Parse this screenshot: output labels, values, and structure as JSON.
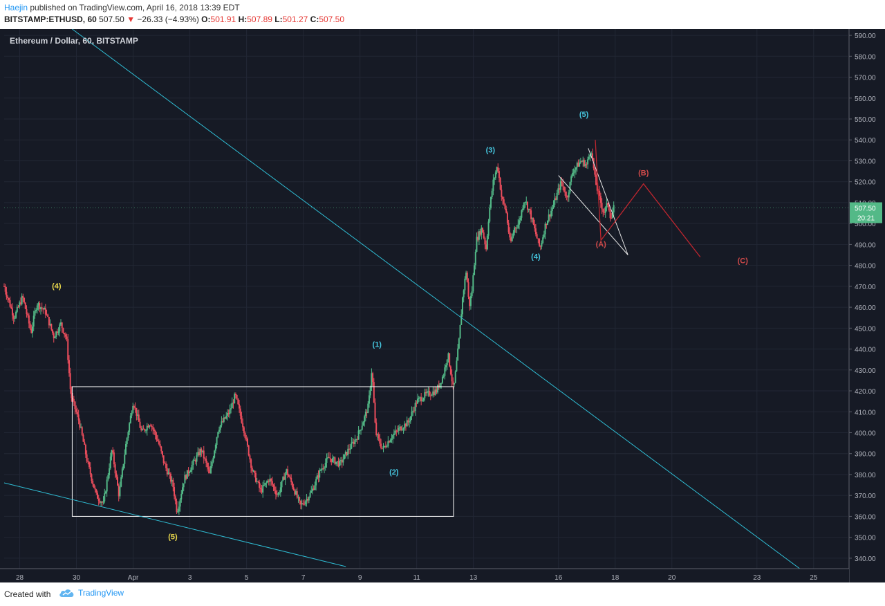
{
  "header": {
    "author": "Haejin",
    "published": "published on TradingView.com, April 16, 2018 13:39 EDT",
    "symbol": "BITSTAMP:ETHUSD, 60",
    "last": "507.50",
    "change": "−26.33 (−4.93%)",
    "o_label": "O:",
    "o_val": "501.91",
    "h_label": "H:",
    "h_val": "507.89",
    "l_label": "L:",
    "l_val": "501.27",
    "c_label": "C:",
    "c_val": "507.50"
  },
  "chart_title": "Ethereum / Dollar, 60, BITSTAMP",
  "footer": {
    "created": "Created with",
    "brand": "TradingView"
  },
  "price_badge": {
    "value": "507.50",
    "timer": "20:21"
  },
  "colors": {
    "background": "#161a25",
    "up": "#53b987",
    "down": "#eb4d5c",
    "trendline": "#2fbcd3",
    "box": "#ffffff",
    "projection": "#c0262f",
    "label_yellow": "#e9d84b",
    "label_cyan": "#46c7e0",
    "label_red": "#d04a4a",
    "axis_text": "#b2b5be"
  },
  "chart_data": {
    "type": "candlestick",
    "timeframe": "60",
    "ylim": [
      335,
      593
    ],
    "y_ticks": [
      340,
      350,
      360,
      370,
      380,
      390,
      400,
      410,
      420,
      430,
      440,
      450,
      460,
      470,
      480,
      490,
      500,
      510,
      520,
      530,
      540,
      550,
      560,
      570,
      580,
      590
    ],
    "x_range_days": [
      -3.55,
      26.2
    ],
    "x_ticks": [
      {
        "label": "28",
        "day": -3
      },
      {
        "label": "30",
        "day": -1
      },
      {
        "label": "Apr",
        "day": 1
      },
      {
        "label": "3",
        "day": 3
      },
      {
        "label": "5",
        "day": 5
      },
      {
        "label": "7",
        "day": 7
      },
      {
        "label": "9",
        "day": 9
      },
      {
        "label": "11",
        "day": 11
      },
      {
        "label": "13",
        "day": 13
      },
      {
        "label": "16",
        "day": 16
      },
      {
        "label": "18",
        "day": 18
      },
      {
        "label": "20",
        "day": 20
      },
      {
        "label": "23",
        "day": 23
      },
      {
        "label": "25",
        "day": 25
      }
    ],
    "price_path": [
      [
        -3.55,
        470
      ],
      [
        -3.2,
        455
      ],
      [
        -2.9,
        465
      ],
      [
        -2.6,
        448
      ],
      [
        -2.4,
        462
      ],
      [
        -2.1,
        458
      ],
      [
        -1.8,
        446
      ],
      [
        -1.55,
        452
      ],
      [
        -1.35,
        445
      ],
      [
        -1.2,
        418
      ],
      [
        -0.9,
        405
      ],
      [
        -0.6,
        385
      ],
      [
        -0.3,
        370
      ],
      [
        -0.05,
        366
      ],
      [
        0.25,
        392
      ],
      [
        0.5,
        370
      ],
      [
        0.75,
        395
      ],
      [
        1.0,
        415
      ],
      [
        1.3,
        400
      ],
      [
        1.6,
        405
      ],
      [
        1.9,
        395
      ],
      [
        2.1,
        385
      ],
      [
        2.4,
        375
      ],
      [
        2.55,
        362
      ],
      [
        2.8,
        378
      ],
      [
        3.1,
        385
      ],
      [
        3.4,
        392
      ],
      [
        3.7,
        380
      ],
      [
        4.0,
        402
      ],
      [
        4.4,
        410
      ],
      [
        4.6,
        418
      ],
      [
        4.9,
        402
      ],
      [
        5.2,
        382
      ],
      [
        5.5,
        372
      ],
      [
        5.8,
        378
      ],
      [
        6.1,
        370
      ],
      [
        6.4,
        382
      ],
      [
        6.7,
        372
      ],
      [
        6.9,
        365
      ],
      [
        7.1,
        368
      ],
      [
        7.3,
        372
      ],
      [
        7.6,
        382
      ],
      [
        7.9,
        388
      ],
      [
        8.3,
        385
      ],
      [
        8.6,
        392
      ],
      [
        8.9,
        398
      ],
      [
        9.1,
        405
      ],
      [
        9.3,
        413
      ],
      [
        9.42,
        431
      ],
      [
        9.55,
        400
      ],
      [
        9.8,
        392
      ],
      [
        10.1,
        398
      ],
      [
        10.4,
        402
      ],
      [
        10.7,
        405
      ],
      [
        11.0,
        415
      ],
      [
        11.3,
        418
      ],
      [
        11.7,
        420
      ],
      [
        11.95,
        428
      ],
      [
        12.1,
        438
      ],
      [
        12.3,
        420
      ],
      [
        12.5,
        445
      ],
      [
        12.62,
        465
      ],
      [
        12.75,
        478
      ],
      [
        12.85,
        460
      ],
      [
        12.95,
        468
      ],
      [
        13.1,
        492
      ],
      [
        13.3,
        498
      ],
      [
        13.45,
        488
      ],
      [
        13.55,
        505
      ],
      [
        13.7,
        520
      ],
      [
        13.85,
        528
      ],
      [
        14.0,
        512
      ],
      [
        14.15,
        506
      ],
      [
        14.3,
        490
      ],
      [
        14.45,
        498
      ],
      [
        14.6,
        500
      ],
      [
        14.8,
        512
      ],
      [
        15.0,
        505
      ],
      [
        15.2,
        495
      ],
      [
        15.35,
        488
      ],
      [
        15.55,
        500
      ],
      [
        15.8,
        508
      ],
      [
        16.1,
        520
      ],
      [
        16.3,
        512
      ],
      [
        16.5,
        525
      ],
      [
        16.8,
        530
      ],
      [
        17.0,
        528
      ],
      [
        17.15,
        536
      ],
      [
        17.3,
        520
      ],
      [
        17.45,
        512
      ],
      [
        17.6,
        505
      ],
      [
        17.75,
        510
      ],
      [
        17.85,
        502
      ],
      [
        17.95,
        507.5
      ]
    ],
    "wave_labels": [
      {
        "text": "(4)",
        "day": -1.7,
        "price": 469,
        "color": "yellow"
      },
      {
        "text": "(5)",
        "day": 2.4,
        "price": 349,
        "color": "yellow"
      },
      {
        "text": "(1)",
        "day": 9.6,
        "price": 441,
        "color": "cyan"
      },
      {
        "text": "(2)",
        "day": 10.2,
        "price": 380,
        "color": "cyan"
      },
      {
        "text": "(3)",
        "day": 13.6,
        "price": 534,
        "color": "cyan"
      },
      {
        "text": "(4)",
        "day": 15.2,
        "price": 483,
        "color": "cyan"
      },
      {
        "text": "(5)",
        "day": 16.9,
        "price": 551,
        "color": "cyan"
      },
      {
        "text": "(A)",
        "day": 17.5,
        "price": 489,
        "color": "red"
      },
      {
        "text": "(B)",
        "day": 19.0,
        "price": 523,
        "color": "red"
      },
      {
        "text": "(C)",
        "day": 22.5,
        "price": 481,
        "color": "red"
      }
    ],
    "annotations": {
      "range_box": {
        "day_start": -1.15,
        "day_end": 12.3,
        "price_high": 422,
        "price_low": 360
      },
      "upper_trendline": [
        [
          -1.15,
          593
        ],
        [
          26.2,
          318
        ]
      ],
      "lower_trendline": [
        [
          -3.55,
          376
        ],
        [
          8.5,
          336
        ]
      ],
      "wedge_upper": [
        [
          17.05,
          536
        ],
        [
          18.45,
          485
        ]
      ],
      "wedge_lower": [
        [
          16.0,
          523
        ],
        [
          18.45,
          485
        ]
      ],
      "projection_abc": [
        [
          17.3,
          540
        ],
        [
          17.5,
          492
        ],
        [
          19.0,
          519
        ],
        [
          21.0,
          484
        ]
      ]
    }
  }
}
